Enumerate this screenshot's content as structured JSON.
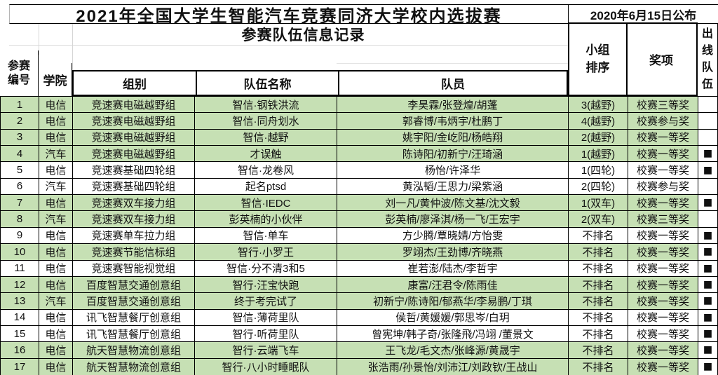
{
  "header": {
    "title": "2021年全国大学生智能汽车竞赛同济大学校内选拔赛",
    "publish_date": "2020年6月15日公布",
    "subtitle": "参赛队伍信息记录",
    "columns": {
      "entry_no": "参赛编号",
      "college": "学院",
      "group": "组别",
      "team": "队伍名称",
      "members": "队员",
      "rank": "小组排序",
      "award": "奖项",
      "qualified": "出线队伍"
    }
  },
  "colors": {
    "highlight_green": "#c6e0b4",
    "border_black": "#000000",
    "faint_grid": "#dcdcdc"
  },
  "table": {
    "qualified_mark": "■",
    "rows": [
      {
        "no": "1",
        "college": "电信",
        "group": "竞速赛电磁越野组",
        "team": "智信·钢铁洪流",
        "members": "李昊霖/张登煌/胡蓬",
        "rank": "3(越野)",
        "award": "校赛三等奖",
        "highlight": true,
        "qualified": false
      },
      {
        "no": "2",
        "college": "电信",
        "group": "竞速赛电磁越野组",
        "team": "智信·同舟划水",
        "members": "郭睿博/韦炳宇/杜鹏丁",
        "rank": "4(越野)",
        "award": "校赛参与奖",
        "highlight": true,
        "qualified": false
      },
      {
        "no": "3",
        "college": "电信",
        "group": "竞速赛电磁越野组",
        "team": "智信·越野",
        "members": "姚宇阳/金屹阳/杨皓翔",
        "rank": "2(越野)",
        "award": "校赛一等奖",
        "highlight": true,
        "qualified": false
      },
      {
        "no": "4",
        "college": "汽车",
        "group": "竞速赛电磁越野组",
        "team": "才误触",
        "members": "陈诗阳/初新宁/汪琦涵",
        "rank": "1(越野)",
        "award": "校赛一等奖",
        "highlight": true,
        "qualified": true
      },
      {
        "no": "5",
        "college": "电信",
        "group": "竞速赛基础四轮组",
        "team": "智信·龙卷风",
        "members": "杨怡/许泽华",
        "rank": "1(四轮)",
        "award": "校赛一等奖",
        "highlight": false,
        "qualified": true
      },
      {
        "no": "6",
        "college": "汽车",
        "group": "竞速赛基础四轮组",
        "team": "起名ptsd",
        "members": "黄泓韬/王思力/梁紫涵",
        "rank": "2(四轮)",
        "award": "校赛参与奖",
        "highlight": false,
        "qualified": false
      },
      {
        "no": "7",
        "college": "电信",
        "group": "竞速赛双车接力组",
        "team": "智信·IEDC",
        "members": "刘一凡/黄仲波/陈文基/沈文毅",
        "rank": "1(双车)",
        "award": "校赛一等奖",
        "highlight": true,
        "qualified": true
      },
      {
        "no": "8",
        "college": "汽车",
        "group": "竞速赛双车接力组",
        "team": "彭英楠的小伙伴",
        "members": "彭英楠/廖泽淇/杨一飞/王宏宇",
        "rank": "2(双车)",
        "award": "校赛三等奖",
        "highlight": true,
        "qualified": false
      },
      {
        "no": "9",
        "college": "电信",
        "group": "竞速赛单车拉力组",
        "team": "智信·单车",
        "members": "方少腾/覃晓婧/方怡雯",
        "rank": "不排名",
        "award": "校赛一等奖",
        "highlight": false,
        "qualified": true
      },
      {
        "no": "10",
        "college": "电信",
        "group": "竞速赛节能信标组",
        "team": "智行·小罗王",
        "members": "罗翊杰/王劲博/齐晓燕",
        "rank": "不排名",
        "award": "校赛一等奖",
        "highlight": true,
        "qualified": true
      },
      {
        "no": "11",
        "college": "电信",
        "group": "竞速赛智能视觉组",
        "team": "智信·分不清3和5",
        "members": "崔若澎/陆杰/李哲宇",
        "rank": "不排名",
        "award": "校赛一等奖",
        "highlight": false,
        "qualified": true
      },
      {
        "no": "12",
        "college": "电信",
        "group": "百度智慧交通创意组",
        "team": "智行·汪宝快跑",
        "members": "康富/汪君令/陈雨佳",
        "rank": "不排名",
        "award": "校赛一等奖",
        "highlight": true,
        "qualified": true
      },
      {
        "no": "13",
        "college": "汽车",
        "group": "百度智慧交通创意组",
        "team": "终于考完试了",
        "members": "初新宁/陈诗阳/郁燕华/李易鹏/丁琪",
        "rank": "不排名",
        "award": "校赛一等奖",
        "highlight": true,
        "qualified": true
      },
      {
        "no": "14",
        "college": "电信",
        "group": "讯飞智慧餐厅创意组",
        "team": "智信·薄荷里队",
        "members": "侯哲/黄媛媛/郭思岑/白玥",
        "rank": "不排名",
        "award": "校赛一等奖",
        "highlight": false,
        "qualified": true
      },
      {
        "no": "15",
        "college": "电信",
        "group": "讯飞智慧餐厅创意组",
        "team": "智行·听荷里队",
        "members": "曾宪坤/韩子奇/张隆飛/冯翊 /董景文",
        "rank": "不排名",
        "award": "校赛一等奖",
        "highlight": false,
        "qualified": true
      },
      {
        "no": "16",
        "college": "电信",
        "group": "航天智慧物流创意组",
        "team": "智行·云端飞车",
        "members": "王飞龙/毛文杰/张峰源/黄晟宇",
        "rank": "不排名",
        "award": "校赛一等奖",
        "highlight": true,
        "qualified": true
      },
      {
        "no": "17",
        "college": "电信",
        "group": "航天智慧物流创意组",
        "team": "智行·八小时睡眠队",
        "members": "张浩雨/孙景怡/刘沛江/刘政钦/王战山",
        "rank": "不排名",
        "award": "校赛一等奖",
        "highlight": true,
        "qualified": true
      }
    ]
  }
}
